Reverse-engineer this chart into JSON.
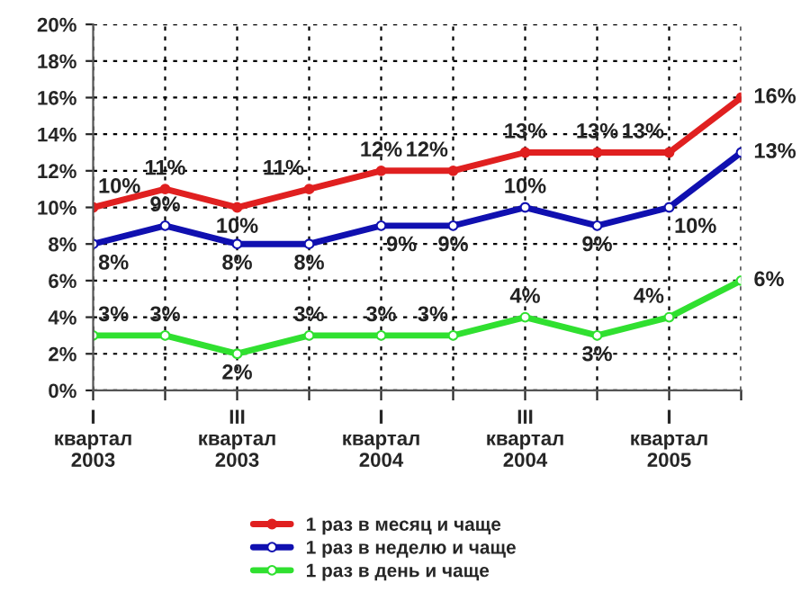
{
  "chart_data": {
    "type": "line",
    "categories": [
      "I\nквартал\n2003",
      null,
      "III\nквартал\n2003",
      null,
      "I\nквартал\n2004",
      null,
      "III\nквартал\n2004",
      null,
      "I\nквартал\n2005",
      null
    ],
    "series": [
      {
        "name": "1 раз в месяц и чаще",
        "color": "#e02020",
        "values": [
          10,
          11,
          10,
          11,
          12,
          12,
          13,
          13,
          13,
          16
        ],
        "value_labels": [
          "10%",
          "11%",
          "10%",
          "11%",
          "12%",
          "12%",
          "13%",
          "13%",
          "13%",
          "16%"
        ]
      },
      {
        "name": "1 раз в неделю и чаще",
        "color": "#1010b0",
        "values": [
          8,
          9,
          8,
          8,
          9,
          9,
          10,
          9,
          10,
          13
        ],
        "value_labels": [
          "8%",
          "9%",
          "8%",
          "8%",
          "9%",
          "9%",
          "10%",
          "9%",
          "10%",
          "13%"
        ]
      },
      {
        "name": "1 раз в день и чаще",
        "color": "#30e030",
        "values": [
          3,
          3,
          2,
          3,
          3,
          3,
          4,
          3,
          4,
          6
        ],
        "value_labels": [
          "3%",
          "3%",
          "2%",
          "3%",
          "3%",
          "3%",
          "4%",
          "3%",
          "4%",
          "6%"
        ]
      }
    ],
    "ylim": [
      0,
      20
    ],
    "yticks": [
      {
        "value": 0,
        "label": "0%"
      },
      {
        "value": 2,
        "label": "2%"
      },
      {
        "value": 4,
        "label": "4%"
      },
      {
        "value": 6,
        "label": "6%"
      },
      {
        "value": 8,
        "label": "8%"
      },
      {
        "value": 10,
        "label": "10%"
      },
      {
        "value": 12,
        "label": "12%"
      },
      {
        "value": 14,
        "label": "14%"
      },
      {
        "value": 16,
        "label": "16%"
      },
      {
        "value": 18,
        "label": "18%"
      },
      {
        "value": 20,
        "label": "20%"
      }
    ],
    "grid": true,
    "legend": "bottom",
    "marker": "circle",
    "line_style": "solid"
  }
}
